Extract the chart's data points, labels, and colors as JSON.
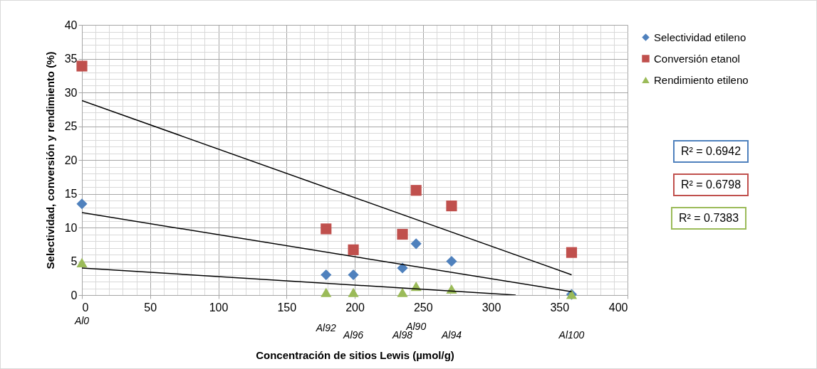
{
  "chart_data": {
    "type": "scatter",
    "xlabel": "Concentración de sitios Lewis (µmol/g)",
    "ylabel": "Selectividad, conversión y rendimiento (%)",
    "xlim": [
      0,
      400
    ],
    "xticks": [
      0,
      50,
      100,
      150,
      200,
      250,
      300,
      350,
      400
    ],
    "ylim": [
      0,
      40
    ],
    "yticks": [
      0,
      5,
      10,
      15,
      20,
      25,
      30,
      35,
      40
    ],
    "grid": true,
    "legend": "right",
    "series": [
      {
        "name": "Selectividad etileno",
        "type": "scatter",
        "marker": "diamond",
        "color": "#4f81bd",
        "x": [
          0,
          179,
          199,
          235,
          245,
          271,
          359
        ],
        "values": [
          13.5,
          3.0,
          3.0,
          4.0,
          7.6,
          5.0,
          0.1
        ]
      },
      {
        "name": "Conversión etanol",
        "type": "scatter",
        "marker": "square",
        "color": "#c0504d",
        "x": [
          0,
          179,
          199,
          235,
          245,
          271,
          359
        ],
        "values": [
          33.9,
          9.8,
          6.7,
          9.0,
          15.5,
          13.2,
          6.3
        ]
      },
      {
        "name": "Rendimiento etileno",
        "type": "scatter",
        "marker": "triangle",
        "color": "#9bbb59",
        "x": [
          0,
          179,
          199,
          235,
          245,
          271,
          359
        ],
        "values": [
          4.8,
          0.4,
          0.4,
          0.4,
          1.3,
          0.9,
          0.1
        ]
      },
      {
        "type": "line",
        "line_style": "solid",
        "color": "#000000",
        "x": [
          0,
          359
        ],
        "values": [
          12.2,
          0.5
        ]
      },
      {
        "type": "line",
        "line_style": "solid",
        "color": "#000000",
        "x": [
          0,
          359
        ],
        "values": [
          28.8,
          3.0
        ]
      },
      {
        "type": "line",
        "line_style": "solid",
        "color": "#000000",
        "x": [
          0,
          318
        ],
        "values": [
          4.0,
          0.0
        ]
      }
    ],
    "annotations": [
      "Al0",
      "Al92",
      "Al96",
      "Al98",
      "Al90",
      "Al94",
      "Al100",
      "R² = 0.6942",
      "R² = 0.6798",
      "R² = 0.7383"
    ]
  }
}
